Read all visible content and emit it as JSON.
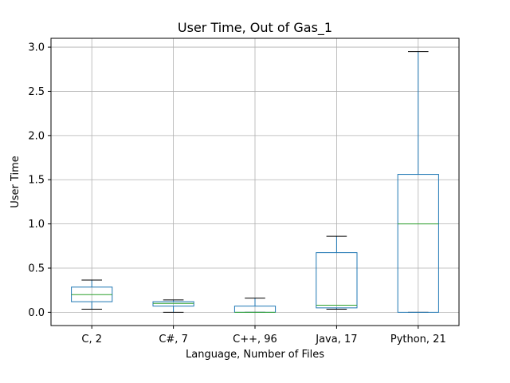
{
  "chart_data": {
    "type": "box",
    "title": "User Time, Out of Gas_1",
    "xlabel": "Language, Number of Files",
    "ylabel": "User Time",
    "ylim": [
      -0.15,
      3.1
    ],
    "yticks": [
      "0.0",
      "0.5",
      "1.0",
      "1.5",
      "2.0",
      "2.5",
      "3.0"
    ],
    "grid": true,
    "legend": "none",
    "categories": [
      "C, 2",
      "C#, 7",
      "C++, 96",
      "Java, 17",
      "Python, 21"
    ],
    "boxes": [
      {
        "label": "C, 2",
        "whisker_low": 0.035,
        "q1": 0.12,
        "median": 0.2,
        "q3": 0.285,
        "whisker_high": 0.365
      },
      {
        "label": "C#, 7",
        "whisker_low": 0.0,
        "q1": 0.07,
        "median": 0.1,
        "q3": 0.12,
        "whisker_high": 0.14
      },
      {
        "label": "C++, 96",
        "whisker_low": 0.0,
        "q1": 0.0,
        "median": 0.0,
        "q3": 0.07,
        "whisker_high": 0.16
      },
      {
        "label": "Java, 17",
        "whisker_low": 0.035,
        "q1": 0.05,
        "median": 0.08,
        "q3": 0.675,
        "whisker_high": 0.86
      },
      {
        "label": "Python, 21",
        "whisker_low": 0.0,
        "q1": 0.0,
        "median": 1.0,
        "q3": 1.56,
        "whisker_high": 2.95
      }
    ],
    "colors": {
      "box": "#1f77b4",
      "median": "#2ca02c",
      "whisker_cap": "#000000",
      "grid": "#b0b0b0"
    }
  }
}
